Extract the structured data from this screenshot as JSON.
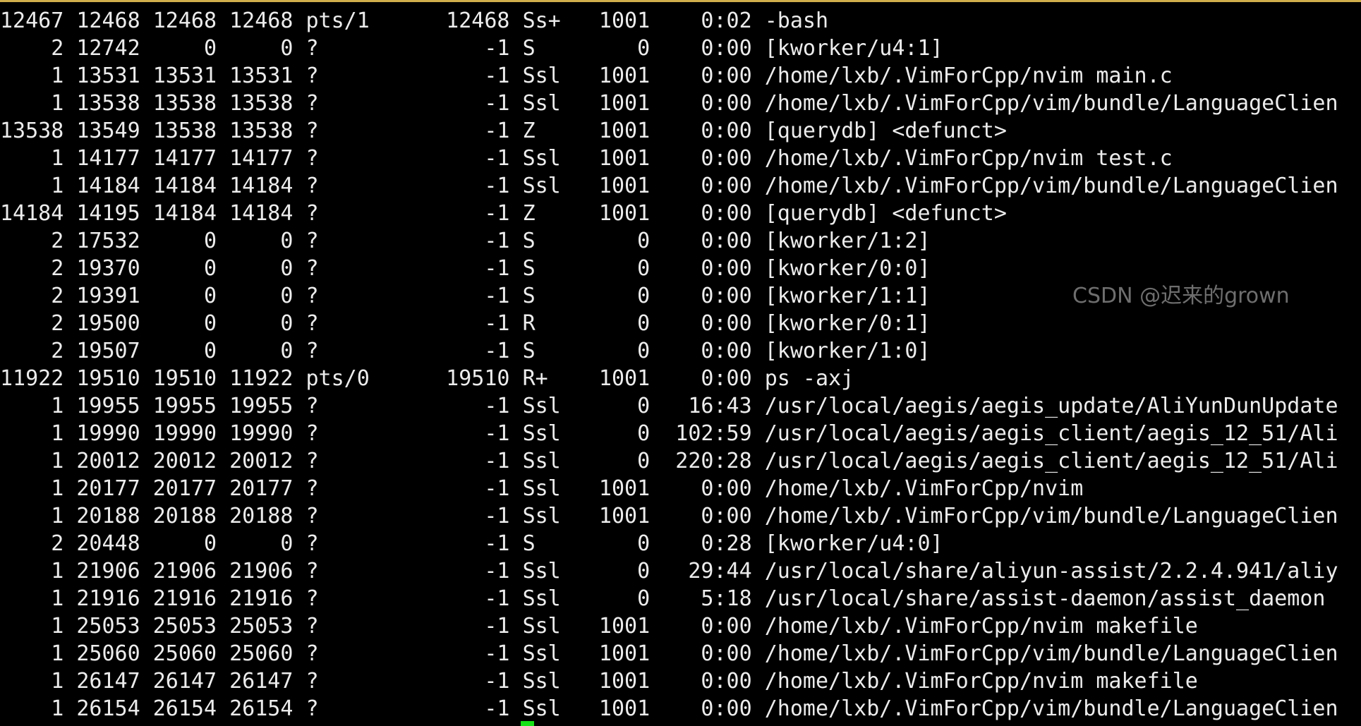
{
  "terminal": {
    "rows": [
      [
        "12467",
        "12468",
        "12468",
        "12468",
        "pts/1",
        "12468",
        "Ss+",
        "1001",
        "0:02",
        "-bash"
      ],
      [
        "2",
        "12742",
        "0",
        "0",
        "?",
        "-1",
        "S",
        "0",
        "0:00",
        "[kworker/u4:1]"
      ],
      [
        "1",
        "13531",
        "13531",
        "13531",
        "?",
        "-1",
        "Ssl",
        "1001",
        "0:00",
        "/home/lxb/.VimForCpp/nvim main.c"
      ],
      [
        "1",
        "13538",
        "13538",
        "13538",
        "?",
        "-1",
        "Ssl",
        "1001",
        "0:00",
        "/home/lxb/.VimForCpp/vim/bundle/LanguageClien"
      ],
      [
        "13538",
        "13549",
        "13538",
        "13538",
        "?",
        "-1",
        "Z",
        "1001",
        "0:00",
        "[querydb] <defunct>"
      ],
      [
        "1",
        "14177",
        "14177",
        "14177",
        "?",
        "-1",
        "Ssl",
        "1001",
        "0:00",
        "/home/lxb/.VimForCpp/nvim test.c"
      ],
      [
        "1",
        "14184",
        "14184",
        "14184",
        "?",
        "-1",
        "Ssl",
        "1001",
        "0:00",
        "/home/lxb/.VimForCpp/vim/bundle/LanguageClien"
      ],
      [
        "14184",
        "14195",
        "14184",
        "14184",
        "?",
        "-1",
        "Z",
        "1001",
        "0:00",
        "[querydb] <defunct>"
      ],
      [
        "2",
        "17532",
        "0",
        "0",
        "?",
        "-1",
        "S",
        "0",
        "0:00",
        "[kworker/1:2]"
      ],
      [
        "2",
        "19370",
        "0",
        "0",
        "?",
        "-1",
        "S",
        "0",
        "0:00",
        "[kworker/0:0]"
      ],
      [
        "2",
        "19391",
        "0",
        "0",
        "?",
        "-1",
        "S",
        "0",
        "0:00",
        "[kworker/1:1]"
      ],
      [
        "2",
        "19500",
        "0",
        "0",
        "?",
        "-1",
        "R",
        "0",
        "0:00",
        "[kworker/0:1]"
      ],
      [
        "2",
        "19507",
        "0",
        "0",
        "?",
        "-1",
        "S",
        "0",
        "0:00",
        "[kworker/1:0]"
      ],
      [
        "11922",
        "19510",
        "19510",
        "11922",
        "pts/0",
        "19510",
        "R+",
        "1001",
        "0:00",
        "ps -axj"
      ],
      [
        "1",
        "19955",
        "19955",
        "19955",
        "?",
        "-1",
        "Ssl",
        "0",
        "16:43",
        "/usr/local/aegis/aegis_update/AliYunDunUpdate"
      ],
      [
        "1",
        "19990",
        "19990",
        "19990",
        "?",
        "-1",
        "Ssl",
        "0",
        "102:59",
        "/usr/local/aegis/aegis_client/aegis_12_51/Ali"
      ],
      [
        "1",
        "20012",
        "20012",
        "20012",
        "?",
        "-1",
        "Ssl",
        "0",
        "220:28",
        "/usr/local/aegis/aegis_client/aegis_12_51/Ali"
      ],
      [
        "1",
        "20177",
        "20177",
        "20177",
        "?",
        "-1",
        "Ssl",
        "1001",
        "0:00",
        "/home/lxb/.VimForCpp/nvim"
      ],
      [
        "1",
        "20188",
        "20188",
        "20188",
        "?",
        "-1",
        "Ssl",
        "1001",
        "0:00",
        "/home/lxb/.VimForCpp/vim/bundle/LanguageClien"
      ],
      [
        "2",
        "20448",
        "0",
        "0",
        "?",
        "-1",
        "S",
        "0",
        "0:28",
        "[kworker/u4:0]"
      ],
      [
        "1",
        "21906",
        "21906",
        "21906",
        "?",
        "-1",
        "Ssl",
        "0",
        "29:44",
        "/usr/local/share/aliyun-assist/2.2.4.941/aliy"
      ],
      [
        "1",
        "21916",
        "21916",
        "21916",
        "?",
        "-1",
        "Ssl",
        "0",
        "5:18",
        "/usr/local/share/assist-daemon/assist_daemon"
      ],
      [
        "1",
        "25053",
        "25053",
        "25053",
        "?",
        "-1",
        "Ssl",
        "1001",
        "0:00",
        "/home/lxb/.VimForCpp/nvim makefile"
      ],
      [
        "1",
        "25060",
        "25060",
        "25060",
        "?",
        "-1",
        "Ssl",
        "1001",
        "0:00",
        "/home/lxb/.VimForCpp/vim/bundle/LanguageClien"
      ],
      [
        "1",
        "26147",
        "26147",
        "26147",
        "?",
        "-1",
        "Ssl",
        "1001",
        "0:00",
        "/home/lxb/.VimForCpp/nvim makefile"
      ],
      [
        "1",
        "26154",
        "26154",
        "26154",
        "?",
        "-1",
        "Ssl",
        "1001",
        "0:00",
        "/home/lxb/.VimForCpp/vim/bundle/LanguageClien"
      ]
    ]
  },
  "watermark": "CSDN @迟来的grown",
  "colors": {
    "text": "#ececec",
    "background": "#000000",
    "cursor": "#16e016",
    "top_border": "#d1ae4c"
  }
}
